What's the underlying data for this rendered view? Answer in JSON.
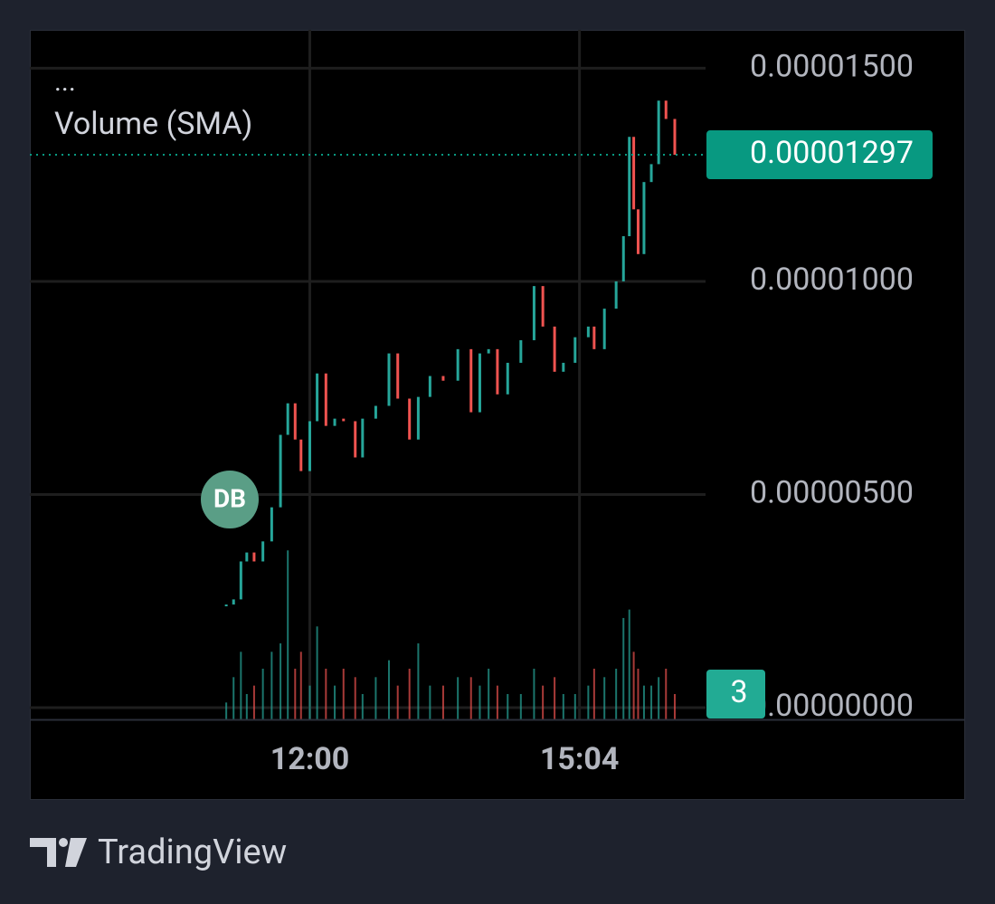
{
  "chart_data": {
    "type": "candlestick",
    "annotations": [
      "...",
      "Volume (SMA)",
      "DB"
    ],
    "watermark": "TradingView",
    "up_color": "#26a69a",
    "down_color": "#ef5350",
    "grid": true,
    "x": [
      663,
      668,
      673,
      677,
      682,
      688,
      694,
      700,
      705,
      710,
      714,
      720,
      725,
      731,
      737,
      743,
      751,
      756,
      765,
      774,
      780,
      788,
      794,
      802,
      811,
      821,
      830,
      836,
      842,
      848,
      855,
      864,
      873,
      879,
      887,
      893,
      901,
      910,
      914,
      921,
      929,
      934,
      938,
      941,
      944,
      948,
      953,
      958,
      963,
      969
    ],
    "xlim": [
      529,
      990
    ],
    "xticks": [
      {
        "value": 720,
        "label": "12:00"
      },
      {
        "value": 904,
        "label": "15:04"
      }
    ],
    "ylim": [
      -2.75e-07,
      1.59e-05
    ],
    "yticks": [
      {
        "value": 0,
        "label": "0.00000000"
      },
      {
        "value": 5e-06,
        "label": "0.00000500"
      },
      {
        "value": 1e-05,
        "label": "0.00001000"
      },
      {
        "value": 1.5e-05,
        "label": "0.00001500"
      }
    ],
    "y2lim": [
      0,
      81.6
    ],
    "series": [
      {
        "values": [
          2.42e-06,
          2.54e-06,
          3.43e-06,
          3.64e-06,
          3.43e-06,
          3.9e-06,
          4.7e-06,
          6.4e-06,
          7.14e-06,
          6.29e-06,
          5.55e-06,
          6.72e-06,
          7.84e-06,
          6.61e-06,
          6.78e-06,
          6.72e-06,
          5.87e-06,
          6.78e-06,
          7.08e-06,
          8.31e-06,
          7.25e-06,
          6.29e-06,
          7.29e-06,
          7.78e-06,
          7.67e-06,
          8.41e-06,
          6.93e-06,
          8.31e-06,
          8.41e-06,
          7.35e-06,
          8.09e-06,
          8.62e-06,
          9.89e-06,
          8.94e-06,
          7.88e-06,
          8.09e-06,
          8.69e-06,
          8.94e-06,
          8.41e-06,
          9.36e-06,
          1e-05,
          1.106e-05,
          1.339e-05,
          1.169e-05,
          1.064e-05,
          1.233e-05,
          1.275e-05,
          1.424e-05,
          1.381e-05,
          1.297e-05
        ]
      },
      {
        "type": "bar",
        "axis": "y2",
        "values": [
          2,
          5,
          8,
          3,
          4,
          6,
          8,
          9,
          20,
          6,
          8,
          4,
          11,
          6,
          4,
          6,
          5,
          3,
          5,
          7,
          4,
          6,
          9,
          4,
          4,
          5,
          5,
          4,
          6,
          4,
          3,
          3,
          6,
          4,
          5,
          3,
          3,
          4,
          6,
          5,
          6,
          12,
          13,
          8,
          6,
          4,
          4,
          5,
          6,
          3
        ]
      }
    ]
  }
}
